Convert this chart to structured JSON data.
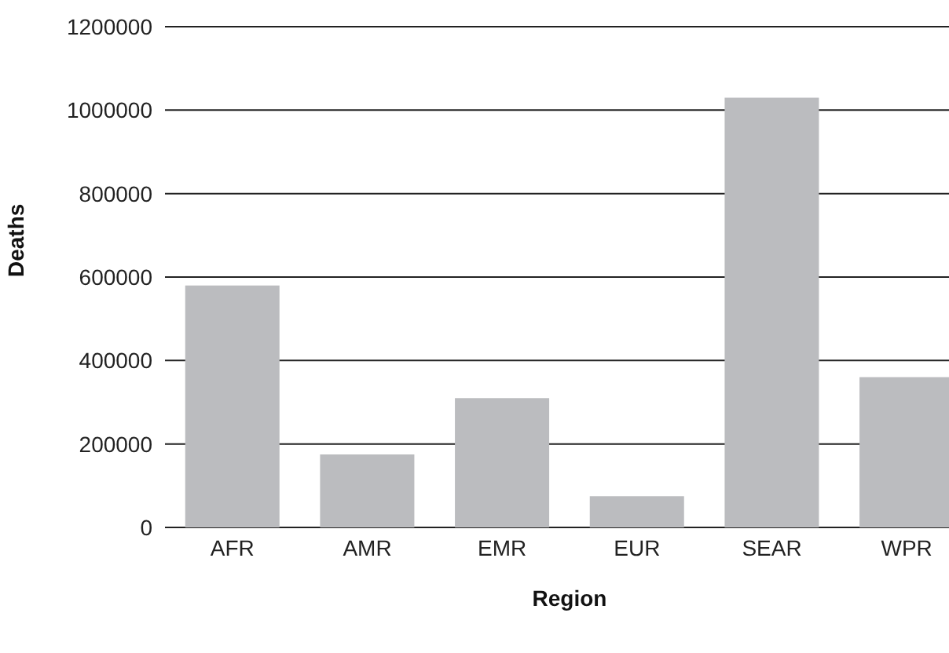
{
  "chart_data": {
    "type": "bar",
    "xlabel": "Region",
    "ylabel": "Deaths",
    "categories": [
      "AFR",
      "AMR",
      "EMR",
      "EUR",
      "SEAR",
      "WPR"
    ],
    "values": [
      580000,
      175000,
      310000,
      75000,
      1030000,
      360000
    ],
    "color": "#bbbcbf",
    "ylim": [
      0,
      1200000
    ],
    "yticks": [
      0,
      200000,
      400000,
      600000,
      800000,
      1000000,
      1200000
    ],
    "grid": "y",
    "legend": false
  }
}
